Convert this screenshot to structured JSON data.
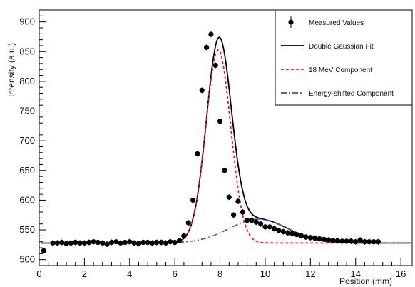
{
  "chart_data": {
    "type": "scatter",
    "xlabel": "Position (mm)",
    "ylabel": "Intensity (a.u.)",
    "xlim": [
      0,
      16.5
    ],
    "ylim": [
      490,
      920
    ],
    "x_ticks": [
      0,
      2,
      4,
      6,
      8,
      10,
      12,
      14,
      16
    ],
    "y_ticks": [
      500,
      550,
      600,
      650,
      700,
      750,
      800,
      850,
      900
    ],
    "grid": false,
    "legend_position": "top-right",
    "legend": [
      {
        "label": "Measured Values",
        "style": "points-with-error-bars",
        "color": "#000000"
      },
      {
        "label": "Double Gaussian Fit",
        "style": "solid",
        "color": "#000000"
      },
      {
        "label": "18 MeV Component",
        "style": "dashed",
        "color": "#e8211e"
      },
      {
        "label": "Energy-shifted Component",
        "style": "dash-dot",
        "color": "#3a56b5"
      }
    ],
    "measured_values": {
      "x": [
        0.2,
        0.6,
        0.8,
        1.0,
        1.2,
        1.4,
        1.6,
        1.8,
        2.0,
        2.2,
        2.4,
        2.6,
        2.8,
        3.0,
        3.2,
        3.4,
        3.6,
        3.8,
        4.0,
        4.2,
        4.4,
        4.6,
        4.8,
        5.0,
        5.2,
        5.4,
        5.6,
        5.8,
        6.0,
        6.2,
        6.4,
        6.6,
        6.8,
        7.0,
        7.2,
        7.4,
        7.6,
        7.8,
        8.0,
        8.2,
        8.4,
        8.6,
        8.8,
        9.0,
        9.2,
        9.4,
        9.6,
        9.8,
        10.0,
        10.2,
        10.4,
        10.6,
        10.8,
        11.0,
        11.2,
        11.4,
        11.6,
        11.8,
        12.0,
        12.2,
        12.4,
        12.6,
        12.8,
        13.0,
        13.2,
        13.4,
        13.6,
        13.8,
        14.0,
        14.2,
        14.4,
        14.6,
        14.8,
        15.0
      ],
      "y": [
        515,
        528,
        528,
        529,
        527,
        528,
        529,
        528,
        528,
        529,
        530,
        529,
        528,
        526,
        529,
        530,
        528,
        529,
        530,
        528,
        527,
        529,
        529,
        528,
        529,
        529,
        528,
        530,
        529,
        532,
        540,
        562,
        600,
        678,
        785,
        857,
        879,
        827,
        733,
        650,
        605,
        575,
        598,
        580,
        566,
        566,
        563,
        560,
        555,
        555,
        552,
        549,
        547,
        545,
        544,
        542,
        540,
        538,
        537,
        536,
        535,
        534,
        533,
        532,
        532,
        531,
        531,
        531,
        530,
        533,
        530,
        530,
        530,
        530
      ]
    },
    "series": [
      {
        "name": "Double Gaussian Fit",
        "baseline": 528,
        "components": [
          {
            "amplitude": 330,
            "mean": 7.95,
            "sigma": 0.55
          },
          {
            "amplitude": 40,
            "mean": 9.7,
            "sigma": 1.3
          }
        ]
      },
      {
        "name": "18 MeV Component",
        "baseline": 528,
        "components": [
          {
            "amplitude": 325,
            "mean": 7.92,
            "sigma": 0.55
          }
        ]
      },
      {
        "name": "Energy-shifted Component",
        "baseline": 528,
        "components": [
          {
            "amplitude": 40,
            "mean": 9.7,
            "sigma": 1.3
          }
        ]
      }
    ]
  }
}
